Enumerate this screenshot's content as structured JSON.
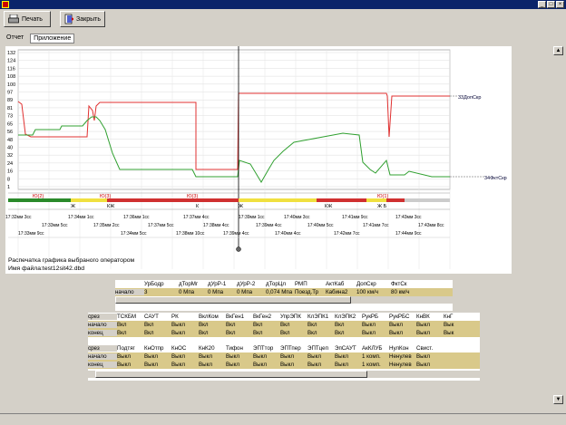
{
  "toolbar": {
    "print_label": "Печать",
    "close_label": "Закрыть"
  },
  "window": {
    "min": "_",
    "max": "□",
    "close": "×"
  },
  "tabs": [
    {
      "label": "Отчет"
    },
    {
      "label": "Приложение"
    }
  ],
  "chart": {
    "y_ticks": [
      "132",
      "124",
      "116",
      "108",
      "100",
      "97",
      "89",
      "81",
      "73",
      "65",
      "56",
      "48",
      "40",
      "32",
      "24",
      "16",
      "8",
      "1"
    ],
    "series": [
      {
        "label": "33ДопСкр",
        "color": "#e03030"
      },
      {
        "label": "34ФктСкр",
        "color": "#30a030"
      }
    ],
    "markers": [
      "Ю(2)",
      "Ю(3)",
      "Ю(3)",
      "Ю(1)"
    ],
    "track_labels": [
      "Ж",
      "КЖ",
      "К",
      "Ж",
      "КЖ",
      "Ж Б"
    ],
    "time_row1": [
      "17:32мм 3сс",
      "17:34мм 1сс",
      "17:36мм 1сс",
      "17:37мм 4сс",
      "17:39мм 1сс",
      "17:40мм 3сс",
      "17:41мм 9сс",
      "17:43мм 3сс"
    ],
    "time_row2": [
      "17:33мм 5сс",
      "17:35мм 2сс",
      "17:37мм 5сс",
      "17:38мм 4сс",
      "17:39мм 4сс",
      "17:40мм 5сс",
      "17:41мм 7сс",
      "17:43мм 8сс"
    ],
    "time_row3": [
      "17:33мм 9сс",
      "17:34мм 5сс",
      "17:38мм 10сс",
      "17:39мм 4сс",
      "17:40мм 4сс",
      "17:42мм 7сс",
      "17:44мм 9сс"
    ],
    "caption": "Распечатка графика выбраного оператором",
    "filename": "Имя файла:test12sit42.dbd"
  },
  "grid1": {
    "headers": [
      "УрБодр",
      "дТорМг",
      "дУрР-1",
      "дУрР-2",
      "дТорЦл",
      "РМП",
      "АктКаб",
      "ДопСкр",
      "ФктСк"
    ],
    "row_label": "начало",
    "values": [
      "3",
      "0 Мпа",
      "0 Мпа",
      "0 Мпа",
      "0,074 Мпа",
      "Поезд.Тр",
      "Кабина2",
      "100 км/ч",
      "80 км/ч"
    ]
  },
  "grid2": {
    "section1": {
      "headers": [
        "срез",
        "ТСКБМ",
        "САУТ",
        "РК",
        "ВклКом",
        "ВкГен1",
        "ВкГен2",
        "УпрЭПК",
        "КлЭПК1",
        "КлЭПК2",
        "РукРБ",
        "РукРБС",
        "КнВК",
        "КнГ"
      ],
      "rows": [
        {
          "label": "начало",
          "values": [
            "Вкл",
            "Вкл",
            "Выкл",
            "Вкл",
            "Вкл",
            "Вкл",
            "Вкл",
            "Вкл",
            "Вкл",
            "Выкл",
            "Выкл",
            "Выкл",
            "Вык"
          ]
        },
        {
          "label": "конец",
          "values": [
            "Вкл",
            "Вкл",
            "Выкл",
            "Вкл",
            "Вкл",
            "Вкл",
            "Вкл",
            "Вкл",
            "Вкл",
            "Выкл",
            "Выкл",
            "Выкл",
            "Вык"
          ]
        }
      ]
    },
    "section2": {
      "headers": [
        "срез",
        "Подтяг",
        "КнОтпр",
        "КнОС",
        "КнК20",
        "Тифон",
        "ЭПТтор",
        "ЭПТпер",
        "ЭПТцеп",
        "ЭпСАУТ",
        "АкКЛУБ",
        "НулКон",
        "Свист."
      ],
      "rows": [
        {
          "label": "начало",
          "values": [
            "Выкл",
            "Выкл",
            "Выкл",
            "Выкл",
            "Выкл",
            "Выкл",
            "Выкл",
            "Выкл",
            "Выкл",
            "1 комп.",
            "Ненулев",
            "Выкл"
          ]
        },
        {
          "label": "конец",
          "values": [
            "Выкл",
            "Выкл",
            "Выкл",
            "Выкл",
            "Выкл",
            "Выкл",
            "Выкл",
            "Выкл",
            "Выкл",
            "1 комп.",
            "Ненулев",
            "Выкл"
          ]
        }
      ]
    }
  }
}
